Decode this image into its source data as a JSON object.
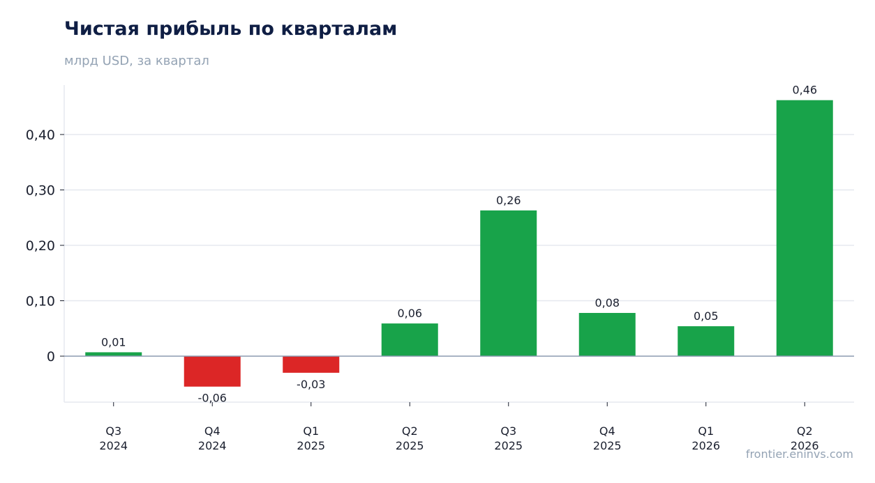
{
  "title": "Чистая прибыль по кварталам",
  "subtitle": "млрд USD, за квартал",
  "source": "frontier.eninvs.com",
  "chart_data": {
    "type": "bar",
    "categories": [
      [
        "Q3",
        "2024"
      ],
      [
        "Q4",
        "2024"
      ],
      [
        "Q1",
        "2025"
      ],
      [
        "Q2",
        "2025"
      ],
      [
        "Q3",
        "2025"
      ],
      [
        "Q4",
        "2025"
      ],
      [
        "Q1",
        "2026"
      ],
      [
        "Q2",
        "2026"
      ]
    ],
    "values": [
      0.007,
      -0.055,
      -0.03,
      0.059,
      0.263,
      0.078,
      0.054,
      0.462
    ],
    "value_labels": [
      "0,01",
      "-0,06",
      "-0,03",
      "0,06",
      "0,26",
      "0,08",
      "0,05",
      "0,46"
    ],
    "yticks": [
      0,
      0.1,
      0.2,
      0.3,
      0.4
    ],
    "ytick_labels": [
      "0",
      "0,10",
      "0,20",
      "0,30",
      "0,40"
    ],
    "ylim": [
      -0.082,
      0.49
    ],
    "grid": true,
    "colors": {
      "positive": "#18a34a",
      "negative": "#dc2626",
      "grid": "#e5e8ef",
      "zero_line": "#8c9ab0",
      "axis": "#e5e8ef"
    }
  }
}
